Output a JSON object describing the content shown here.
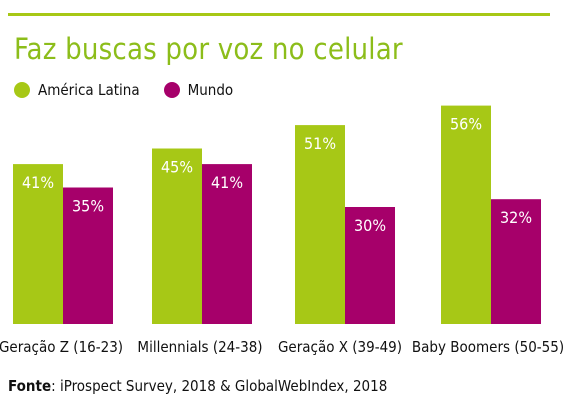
{
  "colors": {
    "accent": "#a7c816",
    "title": "#8cbd1a",
    "america_latina": "#a7c816",
    "mundo": "#a6006a"
  },
  "header": {
    "title": "Faz buscas por voz no celular"
  },
  "legend": {
    "items": [
      {
        "label": "América Latina",
        "color": "#a7c816"
      },
      {
        "label": "Mundo",
        "color": "#a6006a"
      }
    ]
  },
  "chart_data": {
    "type": "bar",
    "title": "Faz buscas por voz no celular",
    "categories": [
      "Geração Z (16-23)",
      "Millennials (24-38)",
      "Geração X (39-49)",
      "Baby Boomers (50-55)"
    ],
    "series": [
      {
        "name": "América Latina",
        "values": [
          41,
          45,
          51,
          56
        ],
        "labels": [
          "41%",
          "45%",
          "51%",
          "56%"
        ],
        "color": "#a7c816"
      },
      {
        "name": "Mundo",
        "values": [
          35,
          41,
          30,
          32
        ],
        "labels": [
          "35%",
          "41%",
          "30%",
          "32%"
        ],
        "color": "#a6006a"
      }
    ],
    "unit": "%",
    "ylim": [
      0,
      60
    ],
    "grid": false,
    "legend_position": "top-left"
  },
  "footer": {
    "source_label": "Fonte",
    "source_text": ": iProspect Survey, 2018 & GlobalWebIndex, 2018"
  }
}
